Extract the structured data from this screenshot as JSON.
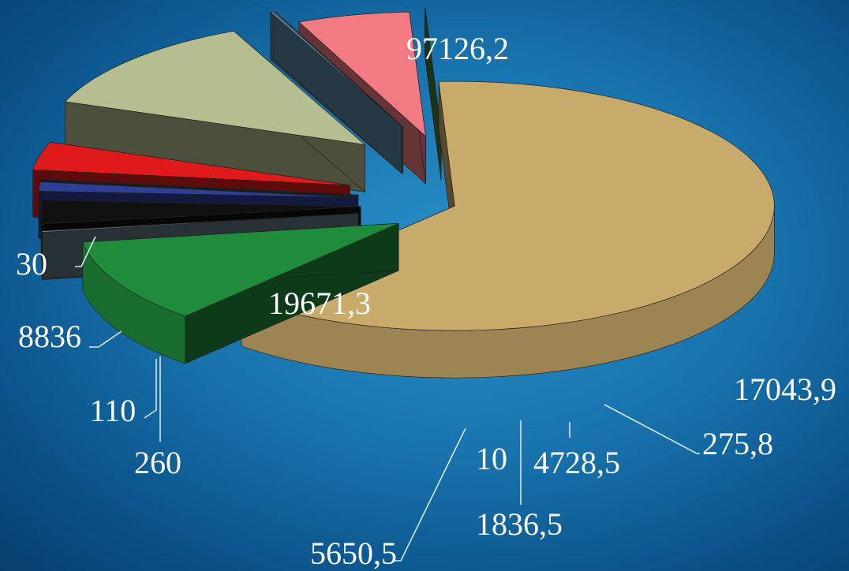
{
  "chart_data": {
    "type": "pie",
    "title": "",
    "variant": "3d-exploded",
    "slices": [
      {
        "label": "97126,2",
        "value": 97126.2,
        "color": "#c8ab6b"
      },
      {
        "label": "17043,9",
        "value": 17043.9,
        "color": "#1f8c3c"
      },
      {
        "label": "275,8",
        "value": 275.8,
        "color": "#5f7480"
      },
      {
        "label": "4728,5",
        "value": 4728.5,
        "color": "#111111"
      },
      {
        "label": "1836,5",
        "value": 1836.5,
        "color": "#2f3f96"
      },
      {
        "label": "10",
        "value": 10,
        "color": "#334455"
      },
      {
        "label": "5650,5",
        "value": 5650.5,
        "color": "#e0191b"
      },
      {
        "label": "19671,3",
        "value": 19671.3,
        "color": "#b6bd90"
      },
      {
        "label": "260",
        "value": 260,
        "color": "#5b86a3"
      },
      {
        "label": "110",
        "value": 110,
        "color": "#4a7090"
      },
      {
        "label": "8836",
        "value": 8836,
        "color": "#f27a82"
      },
      {
        "label": "30",
        "value": 30,
        "color": "#3f7a3c"
      }
    ]
  }
}
